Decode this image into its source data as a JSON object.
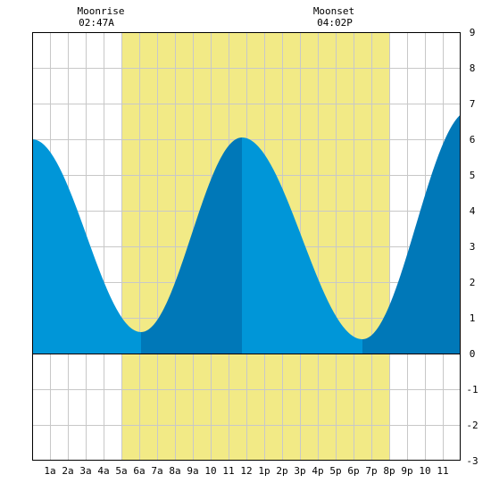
{
  "moon": {
    "rise_title": "Moonrise",
    "rise_time": "02:47A",
    "set_title": "Moonset",
    "set_time": "04:02P"
  },
  "chart_data": {
    "type": "area",
    "title": "",
    "xlabel": "",
    "ylabel": "",
    "xlim": [
      0,
      24
    ],
    "ylim": [
      -3,
      9
    ],
    "x_ticks": [
      1,
      2,
      3,
      4,
      5,
      6,
      7,
      8,
      9,
      10,
      11,
      12,
      13,
      14,
      15,
      16,
      17,
      18,
      19,
      20,
      21,
      22,
      23
    ],
    "x_tick_labels": [
      "1a",
      "2a",
      "3a",
      "4a",
      "5a",
      "6a",
      "7a",
      "8a",
      "9a",
      "10",
      "11",
      "12",
      "1p",
      "2p",
      "3p",
      "4p",
      "5p",
      "6p",
      "7p",
      "8p",
      "9p",
      "10",
      "11"
    ],
    "y_ticks": [
      -3,
      -2,
      -1,
      0,
      1,
      2,
      3,
      4,
      5,
      6,
      7,
      8,
      9
    ],
    "y_tick_labels": [
      "-3",
      "-2",
      "-1",
      "0",
      "1",
      "2",
      "3",
      "4",
      "5",
      "6",
      "7",
      "8",
      "9"
    ],
    "grid": true,
    "daylight": {
      "start": 5.0,
      "end": 20.0
    },
    "extremes": [
      {
        "x": 0.0,
        "y": 6.0
      },
      {
        "x": 6.1,
        "y": 0.6
      },
      {
        "x": 11.75,
        "y": 6.05
      },
      {
        "x": 18.5,
        "y": 0.4
      },
      {
        "x": 24.5,
        "y": 6.8
      }
    ],
    "tide_series": [
      {
        "name": "falling",
        "range": [
          0.0,
          6.1
        ]
      },
      {
        "name": "rising",
        "range": [
          6.1,
          11.75
        ]
      },
      {
        "name": "falling",
        "range": [
          11.75,
          18.5
        ]
      },
      {
        "name": "rising",
        "range": [
          18.5,
          24.0
        ]
      }
    ],
    "colors": {
      "daylight": "#f2ea86",
      "falling": "#0096d8",
      "rising": "#0078b8",
      "grid": "#c8c8c8",
      "border": "#000000"
    }
  }
}
